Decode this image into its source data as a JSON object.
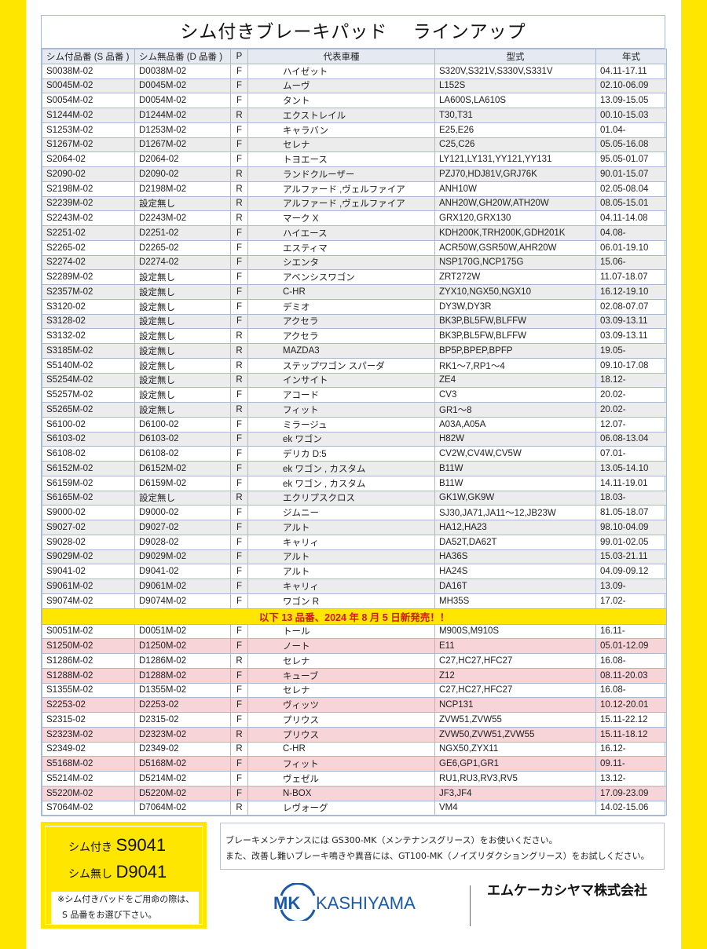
{
  "title": "シム付きブレーキパッド　 ラインアップ",
  "columns": [
    "シム付品番 (S 品番 )",
    "シム無品番 (D 品番 )",
    "P",
    "代表車種",
    "型式",
    "年式"
  ],
  "rows": [
    [
      "S0038M-02",
      "D0038M-02",
      "F",
      "ハイゼット",
      "S320V,S321V,S330V,S331V",
      "04.11-17.11"
    ],
    [
      "S0045M-02",
      "D0045M-02",
      "F",
      "ムーヴ",
      "L152S",
      "02.10-06.09"
    ],
    [
      "S0054M-02",
      "D0054M-02",
      "F",
      "タント",
      "LA600S,LA610S",
      "13.09-15.05"
    ],
    [
      "S1244M-02",
      "D1244M-02",
      "R",
      "エクストレイル",
      "T30,T31",
      "00.10-15.03"
    ],
    [
      "S1253M-02",
      "D1253M-02",
      "F",
      "キャラバン",
      "E25,E26",
      "01.04-"
    ],
    [
      "S1267M-02",
      "D1267M-02",
      "F",
      "セレナ",
      "C25,C26",
      "05.05-16.08"
    ],
    [
      "S2064-02",
      "D2064-02",
      "F",
      "トヨエース",
      "LY121,LY131,YY121,YY131",
      "95.05-01.07"
    ],
    [
      "S2090-02",
      "D2090-02",
      "R",
      "ランドクルーザー",
      "PZJ70,HDJ81V,GRJ76K",
      "90.01-15.07"
    ],
    [
      "S2198M-02",
      "D2198M-02",
      "R",
      "アルファード ,ヴェルファイア",
      "ANH10W",
      "02.05-08.04"
    ],
    [
      "S2239M-02",
      "設定無し",
      "R",
      "アルファード ,ヴェルファイア",
      "ANH20W,GH20W,ATH20W",
      "08.05-15.01"
    ],
    [
      "S2243M-02",
      "D2243M-02",
      "R",
      "マーク X",
      "GRX120,GRX130",
      "04.11-14.08"
    ],
    [
      "S2251-02",
      "D2251-02",
      "F",
      "ハイエース",
      "KDH200K,TRH200K,GDH201K",
      "04.08-"
    ],
    [
      "S2265-02",
      "D2265-02",
      "F",
      "エスティマ",
      "ACR50W,GSR50W,AHR20W",
      "06.01-19.10"
    ],
    [
      "S2274-02",
      "D2274-02",
      "F",
      "シエンタ",
      "NSP170G,NCP175G",
      "15.06-"
    ],
    [
      "S2289M-02",
      "設定無し",
      "F",
      "アベンシスワゴン",
      "ZRT272W",
      "11.07-18.07"
    ],
    [
      "S2357M-02",
      "設定無し",
      "F",
      "C-HR",
      "ZYX10,NGX50,NGX10",
      "16.12-19.10"
    ],
    [
      "S3120-02",
      "設定無し",
      "F",
      "デミオ",
      "DY3W,DY3R",
      "02.08-07.07"
    ],
    [
      "S3128-02",
      "設定無し",
      "F",
      "アクセラ",
      "BK3P,BL5FW,BLFFW",
      "03.09-13.11"
    ],
    [
      "S3132-02",
      "設定無し",
      "R",
      "アクセラ",
      "BK3P,BL5FW,BLFFW",
      "03.09-13.11"
    ],
    [
      "S3185M-02",
      "設定無し",
      "R",
      "MAZDA3",
      "BP5P,BPEP,BPFP",
      "19.05-"
    ],
    [
      "S5140M-02",
      "設定無し",
      "R",
      "ステップワゴン スパーダ",
      "RK1～7,RP1～4",
      "09.10-17.08"
    ],
    [
      "S5254M-02",
      "設定無し",
      "R",
      "インサイト",
      "ZE4",
      "18.12-"
    ],
    [
      "S5257M-02",
      "設定無し",
      "F",
      "アコード",
      "CV3",
      "20.02-"
    ],
    [
      "S5265M-02",
      "設定無し",
      "R",
      "フィット",
      "GR1～8",
      "20.02-"
    ],
    [
      "S6100-02",
      "D6100-02",
      "F",
      "ミラージュ",
      "A03A,A05A",
      "12.07-"
    ],
    [
      "S6103-02",
      "D6103-02",
      "F",
      "ek ワゴン",
      "H82W",
      "06.08-13.04"
    ],
    [
      "S6108-02",
      "D6108-02",
      "F",
      "デリカ D:5",
      "CV2W,CV4W,CV5W",
      "07.01-"
    ],
    [
      "S6152M-02",
      "D6152M-02",
      "F",
      "ek ワゴン , カスタム",
      "B11W",
      "13.05-14.10"
    ],
    [
      "S6159M-02",
      "D6159M-02",
      "F",
      "ek ワゴン , カスタム",
      "B11W",
      "14.11-19.01"
    ],
    [
      "S6165M-02",
      "設定無し",
      "R",
      "エクリプスクロス",
      "GK1W,GK9W",
      "18.03-"
    ],
    [
      "S9000-02",
      "D9000-02",
      "F",
      "ジムニー",
      "SJ30,JA71,JA11～12,JB23W",
      "81.05-18.07"
    ],
    [
      "S9027-02",
      "D9027-02",
      "F",
      "アルト",
      "HA12,HA23",
      "98.10-04.09"
    ],
    [
      "S9028-02",
      "D9028-02",
      "F",
      "キャリィ",
      "DA52T,DA62T",
      "99.01-02.05"
    ],
    [
      "S9029M-02",
      "D9029M-02",
      "F",
      "アルト",
      "HA36S",
      "15.03-21.11"
    ],
    [
      "S9041-02",
      "D9041-02",
      "F",
      "アルト",
      "HA24S",
      "04.09-09.12"
    ],
    [
      "S9061M-02",
      "D9061M-02",
      "F",
      "キャリィ",
      "DA16T",
      "13.09-"
    ],
    [
      "S9074M-02",
      "D9074M-02",
      "F",
      "ワゴン R",
      "MH35S",
      "17.02-"
    ]
  ],
  "banner": "以下 13 品番、2024 年 8 月 5 日新発売！！",
  "new_rows": [
    [
      "S0051M-02",
      "D0051M-02",
      "F",
      "トール",
      "M900S,M910S",
      "16.11-"
    ],
    [
      "S1250M-02",
      "D1250M-02",
      "F",
      "ノート",
      "E11",
      "05.01-12.09"
    ],
    [
      "S1286M-02",
      "D1286M-02",
      "R",
      "セレナ",
      "C27,HC27,HFC27",
      "16.08-"
    ],
    [
      "S1288M-02",
      "D1288M-02",
      "F",
      "キューブ",
      "Z12",
      "08.11-20.03"
    ],
    [
      "S1355M-02",
      "D1355M-02",
      "F",
      "セレナ",
      "C27,HC27,HFC27",
      "16.08-"
    ],
    [
      "S2253-02",
      "D2253-02",
      "F",
      "ヴィッツ",
      "NCP131",
      "10.12-20.01"
    ],
    [
      "S2315-02",
      "D2315-02",
      "F",
      "プリウス",
      "ZVW51,ZVW55",
      "15.11-22.12"
    ],
    [
      "S2323M-02",
      "D2323M-02",
      "R",
      "プリウス",
      "ZVW50,ZVW51,ZVW55",
      "15.11-18.12"
    ],
    [
      "S2349-02",
      "D2349-02",
      "R",
      "C-HR",
      "NGX50,ZYX11",
      "16.12-"
    ],
    [
      "S5168M-02",
      "D5168M-02",
      "F",
      "フィット",
      "GE6,GP1,GR1",
      "09.11-"
    ],
    [
      "S5214M-02",
      "D5214M-02",
      "F",
      "ヴェゼル",
      "RU1,RU3,RV3,RV5",
      "13.12-"
    ],
    [
      "S5220M-02",
      "D5220M-02",
      "F",
      "N-BOX",
      "JF3,JF4",
      "17.09-23.09"
    ],
    [
      "S7064M-02",
      "D7064M-02",
      "R",
      "レヴォーグ",
      "VM4",
      "14.02-15.06"
    ]
  ],
  "example": {
    "with_label": "シム付き",
    "with_code": "S9041",
    "without_label": "シム無し",
    "without_code": "D9041",
    "note1": "※シム付きパッドをご用命の際は、",
    "note2": "S 品番をお選び下さい。"
  },
  "notice": {
    "line1": "ブレーキメンテナンスには GS300-MK（メンテナンスグリース）をお使いください。",
    "line2": "また、改善し難いブレーキ鳴きや異音には、GT100-MK（ノイズリダクショングリース）をお試しください。"
  },
  "logo_text": "MK KASHIYAMA",
  "company": "エムケーカシヤマ株式会社",
  "colors": {
    "yellow": "#ffe600",
    "banner_text": "#d4161c",
    "pink_row": "#f6d4d8",
    "logo_blue": "#1c5aa8"
  }
}
